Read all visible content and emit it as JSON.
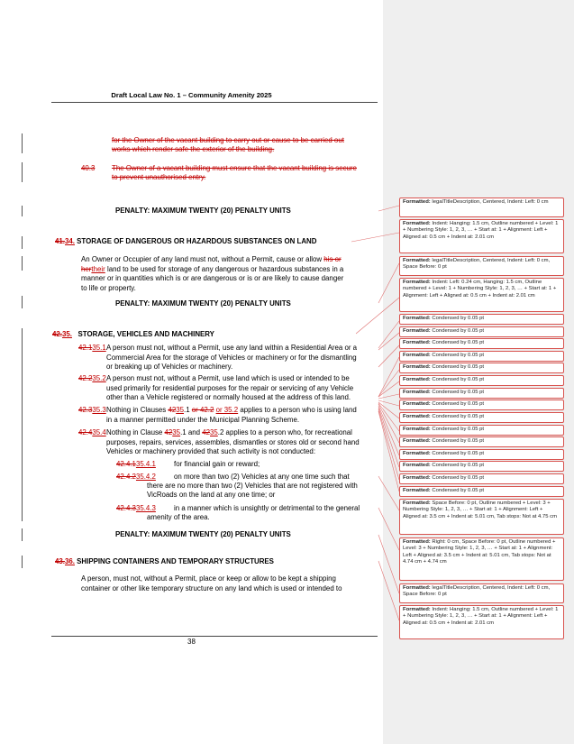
{
  "header": "Draft Local Law No. 1 – Community Amenity 2025",
  "page_number": "38",
  "top_deleted_text": {
    "line1": "for the Owner of the vacant building to carry out or cause to be carried out",
    "line2": "works which render safe the exterior of the building.",
    "clause_num": "40.3",
    "clause_line1": "The Owner of a vacant building must ensure that the vacant building is secure",
    "clause_line2": "to prevent unauthorised entry."
  },
  "penalty_1": "PENALTY: MAXIMUM TWENTY (20) PENALTY UNITS",
  "clause_34": {
    "num_old": "41.",
    "num_new": "34.",
    "heading": "STORAGE OF DANGEROUS OR HAZARDOUS SUBSTANCES ON LAND",
    "line1_a": "An Owner or Occupier of any land must not, without a Permit, cause or allow",
    "line1_del": "his or",
    "line2_del": "her",
    "line2_ins": "their",
    "line2_b": "land to be used for storage of any dangerous or hazardous substances in a",
    "line3": "manner or in quantities which is or are dangerous or is or are likely to cause danger",
    "line4": "to life or property."
  },
  "penalty_2": "PENALTY: MAXIMUM TWENTY (20) PENALTY UNITS",
  "clause_35": {
    "num_old": "42.",
    "num_new": "35.",
    "heading": "STORAGE, VEHICLES AND MACHINERY",
    "s1_num_del": "42.1",
    "s1_num_ins": "35.1",
    "s1_line1": "A person must not, without a Permit, use any land within a Residential Area or a",
    "s1_line2": "Commercial Area for the storage of Vehicles or machinery or for the dismantling",
    "s1_line3": "or breaking up of Vehicles or machinery.",
    "s2_num_del": "42.2",
    "s2_num_ins": "35.2",
    "s2_line1": "A person must not, without a Permit, use land which is used or intended to be",
    "s2_line2": "used primarily for residential purposes for the repair or servicing of any Vehicle",
    "s2_line3": "other than a Vehicle registered or normally housed at the address of this land.",
    "s3_num_del": "42.3",
    "s3_num_ins": "35.3",
    "s3_a": "Nothing in Clauses",
    "s3_ref_del": "42",
    "s3_ref_ins": "35",
    "s3_b": ".1",
    "s3_del2": "or 42.2",
    "s3_ins2": "or 35.2",
    "s3_c": "applies to a person who is using land",
    "s3_line2": "in a manner permitted under the Municipal Planning Scheme.",
    "s4_num_del": "42.4",
    "s4_num_ins": "35.4",
    "s4_a": "Nothing in Clause",
    "s4_ref1_del": "42",
    "s4_ref1_ins": "35",
    "s4_b": ".1 and",
    "s4_ref2_del": "42",
    "s4_ref2_ins": "35",
    "s4_c": ".2 applies to a person who, for recreational",
    "s4_line2": "purposes, repairs, services, assembles, dismantles or stores old or second hand",
    "s4_line3": "Vehicles or machinery provided that such activity is not conducted:",
    "p1_num_del": "42.4.1",
    "p1_num_ins": "35.4.1",
    "p1_text": "for financial gain or reward;",
    "p2_num_del": "42.4.2",
    "p2_num_ins": "35.4.2",
    "p2_line1": "on more than two (2) Vehicles at any one time such that",
    "p2_line2": "there are no more than two (2) Vehicles that are not registered with",
    "p2_line3": "VicRoads on the land at any one time; or",
    "p3_num_del": "42.4.3",
    "p3_num_ins": "35.4.3",
    "p3_line1": "in a manner which is unsightly or detrimental to the general",
    "p3_line2": "amenity of the area."
  },
  "penalty_3": "PENALTY: MAXIMUM TWENTY (20) PENALTY UNITS",
  "clause_36": {
    "num_old": "43.",
    "num_new": "36.",
    "heading": "SHIPPING CONTAINERS AND TEMPORARY STRUCTURES",
    "line1": "A person, must not, without a Permit, place or keep or allow to be kept a shipping",
    "line2": "container or other like temporary structure on any land which is used or intended to"
  },
  "balloons": [
    {
      "label": "Formatted:",
      "text": "legalTitleDescription, Centered, Indent: Left: 0 cm"
    },
    {
      "label": "Formatted:",
      "text": "Indent: Hanging: 1.5 cm, Outline numbered + Level: 1 + Numbering Style: 1, 2, 3, … + Start at: 1 + Alignment: Left + Aligned at: 0.5 cm + Indent at: 2.01 cm"
    },
    {
      "label": "Formatted:",
      "text": "legalTitleDescription, Centered, Indent: Left: 0 cm, Space Before: 0 pt"
    },
    {
      "label": "Formatted:",
      "text": "Indent: Left: 0.24 cm, Hanging: 1.5 cm, Outline numbered + Level: 1 + Numbering Style: 1, 2, 3, … + Start at: 1 + Alignment: Left + Aligned at: 0.5 cm + Indent at: 2.01 cm"
    },
    {
      "label": "Formatted:",
      "text": "Condensed by 0.05 pt"
    },
    {
      "label": "Formatted:",
      "text": "Condensed by 0.05 pt"
    },
    {
      "label": "Formatted:",
      "text": "Condensed by 0.05 pt"
    },
    {
      "label": "Formatted:",
      "text": "Condensed by 0.05 pt"
    },
    {
      "label": "Formatted:",
      "text": "Condensed by 0.05 pt"
    },
    {
      "label": "Formatted:",
      "text": "Condensed by 0.05 pt"
    },
    {
      "label": "Formatted:",
      "text": "Condensed by 0.05 pt"
    },
    {
      "label": "Formatted:",
      "text": "Condensed by 0.05 pt"
    },
    {
      "label": "Formatted:",
      "text": "Condensed by 0.05 pt"
    },
    {
      "label": "Formatted:",
      "text": "Condensed by 0.05 pt"
    },
    {
      "label": "Formatted:",
      "text": "Condensed by 0.05 pt"
    },
    {
      "label": "Formatted:",
      "text": "Condensed by 0.05 pt"
    },
    {
      "label": "Formatted:",
      "text": "Condensed by 0.05 pt"
    },
    {
      "label": "Formatted:",
      "text": "Condensed by 0.05 pt"
    },
    {
      "label": "Formatted:",
      "text": "Condensed by 0.05 pt"
    },
    {
      "label": "Formatted:",
      "text": "Space Before: 0 pt, Outline numbered + Level: 3 + Numbering Style: 1, 2, 3, … + Start at: 1 + Alignment: Left + Aligned at: 3.5 cm + Indent at: 5.01 cm, Tab stops: Not at 4.75 cm"
    },
    {
      "label": "Formatted:",
      "text": "Right: 0 cm, Space Before: 0 pt, Outline numbered + Level: 3 + Numbering Style: 1, 2, 3, … + Start at: 1 + Alignment: Left + Aligned at: 3.5 cm + Indent at: 5.01 cm, Tab stops: Not at 4.74 cm + 4.74 cm"
    },
    {
      "label": "Formatted:",
      "text": "legalTitleDescription, Centered, Indent: Left: 0 cm, Space Before: 0 pt"
    },
    {
      "label": "Formatted:",
      "text": "Indent: Hanging: 1.5 cm, Outline numbered + Level: 1 + Numbering Style: 1, 2, 3, … + Start at: 1 + Alignment: Left + Aligned at: 0.5 cm + Indent at: 2.01 cm"
    }
  ]
}
